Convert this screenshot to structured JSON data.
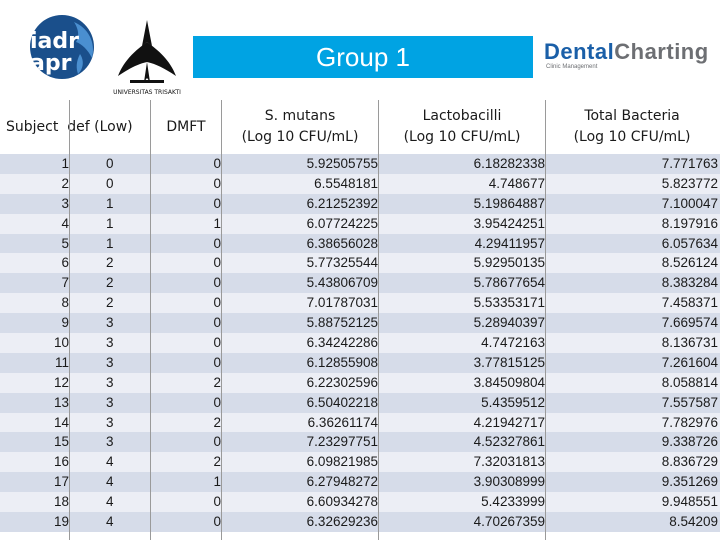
{
  "header": {
    "group_title": "Group 1",
    "iadr_logo": {
      "line1": "iadr",
      "line2": "apr",
      "icon": "iadr-apr-globe-logo-icon",
      "color": "#1a4f8b"
    },
    "trisakti_logo": {
      "caption": "UNIVERSITAS TRISAKTI",
      "icon": "trisakti-emblem-icon"
    },
    "dental_charting": {
      "word1": "Dental",
      "word2": "Charting",
      "subtitle": "Clinic Management"
    }
  },
  "colors": {
    "banner": "#00a3e3",
    "row_odd": "#d6dce9",
    "row_even": "#eceef5"
  },
  "table": {
    "columns": {
      "subject": "Subject",
      "def": "def (Low)",
      "dmft": "DMFT",
      "smutans": [
        "S. mutans",
        "(Log 10 CFU/mL)"
      ],
      "lacto": [
        "Lactobacilli",
        "(Log 10 CFU/mL)"
      ],
      "total": [
        "Total Bacteria",
        "(Log 10 CFU/mL)"
      ]
    },
    "rows": [
      [
        "1",
        "0",
        "0",
        "5.92505755",
        "6.18282338",
        "7.771763"
      ],
      [
        "2",
        "0",
        "0",
        "6.5548181",
        "4.748677",
        "5.823772"
      ],
      [
        "3",
        "1",
        "0",
        "6.21252392",
        "5.19864887",
        "7.100047"
      ],
      [
        "4",
        "1",
        "1",
        "6.07724225",
        "3.95424251",
        "8.197916"
      ],
      [
        "5",
        "1",
        "0",
        "6.38656028",
        "4.29411957",
        "6.057634"
      ],
      [
        "6",
        "2",
        "0",
        "5.77325544",
        "5.92950135",
        "8.526124"
      ],
      [
        "7",
        "2",
        "0",
        "5.43806709",
        "5.78677654",
        "8.383284"
      ],
      [
        "8",
        "2",
        "0",
        "7.01787031",
        "5.53353171",
        "7.458371"
      ],
      [
        "9",
        "3",
        "0",
        "5.88752125",
        "5.28940397",
        "7.669574"
      ],
      [
        "10",
        "3",
        "0",
        "6.34242286",
        "4.7472163",
        "8.136731"
      ],
      [
        "11",
        "3",
        "0",
        "6.12855908",
        "3.77815125",
        "7.261604"
      ],
      [
        "12",
        "3",
        "2",
        "6.22302596",
        "3.84509804",
        "8.058814"
      ],
      [
        "13",
        "3",
        "0",
        "6.50402218",
        "5.4359512",
        "7.557587"
      ],
      [
        "14",
        "3",
        "2",
        "6.36261174",
        "4.21942717",
        "7.782976"
      ],
      [
        "15",
        "3",
        "0",
        "7.23297751",
        "4.52327861",
        "9.338726"
      ],
      [
        "16",
        "4",
        "2",
        "6.09821985",
        "7.32031813",
        "8.836729"
      ],
      [
        "17",
        "4",
        "1",
        "6.27948272",
        "3.90308999",
        "9.351269"
      ],
      [
        "18",
        "4",
        "0",
        "6.60934278",
        "5.4233999",
        "9.948551"
      ],
      [
        "19",
        "4",
        "0",
        "6.32629236",
        "4.70267359",
        "8.54209"
      ]
    ]
  }
}
